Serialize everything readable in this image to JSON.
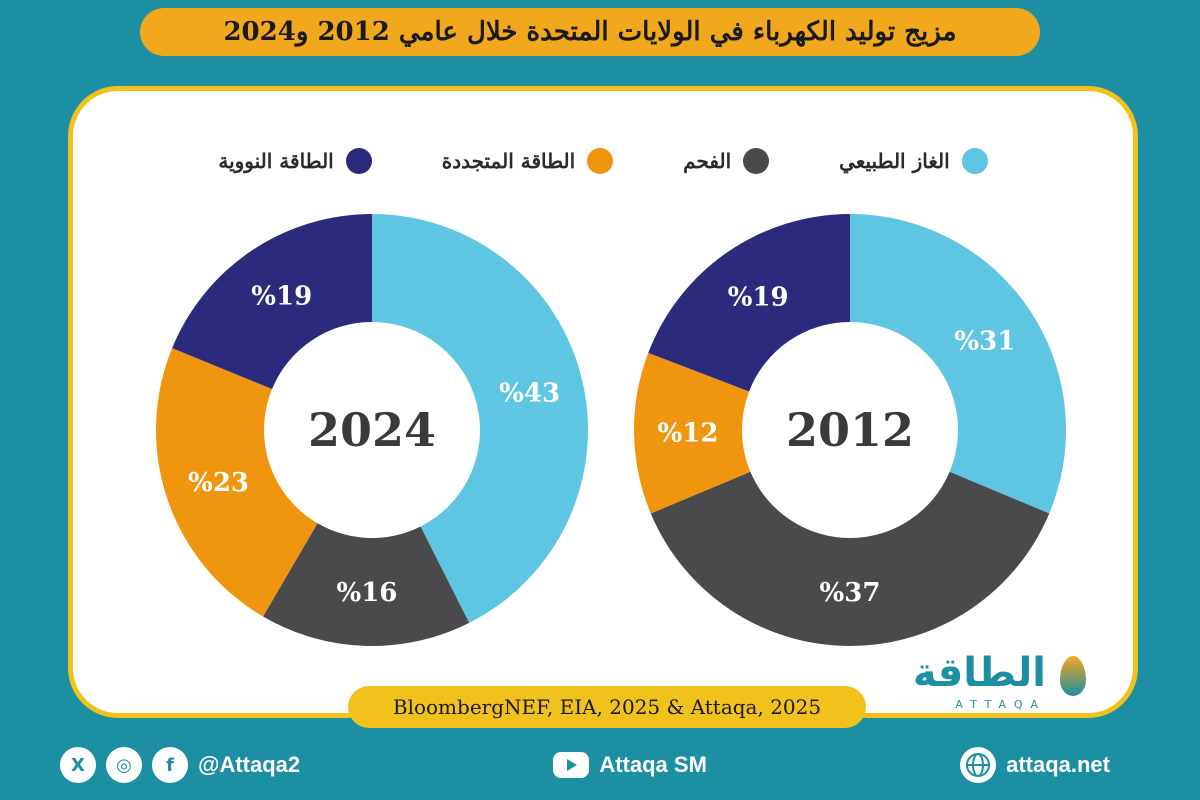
{
  "title": "مزيج توليد الكهرباء في الولايات المتحدة خلال عامي 2012 و2024",
  "source": "BloombergNEF, EIA, 2025 & Attaqa, 2025",
  "logo": {
    "main": "الطاقة",
    "sub": "ATTAQA"
  },
  "footer": {
    "website": "attaqa.net",
    "youtube": "Attaqa SM",
    "handle": "@Attaqa2",
    "social_icons": [
      "x-icon",
      "instagram-icon",
      "facebook-icon"
    ]
  },
  "colors": {
    "background": "#1d8fa3",
    "title_bar": "#f2a81c",
    "card_border": "#f2c21c"
  },
  "legend": [
    {
      "label": "الغاز الطبيعي",
      "color": "#5ec5e2"
    },
    {
      "label": "الفحم",
      "color": "#4a4a4c"
    },
    {
      "label": "الطاقة المتجددة",
      "color": "#f0960e"
    },
    {
      "label": "الطاقة النووية",
      "color": "#2b2a7c"
    }
  ],
  "chart_data": [
    {
      "type": "pie",
      "center_label": "2012",
      "categories": [
        "الغاز الطبيعي",
        "الفحم",
        "الطاقة المتجددة",
        "الطاقة النووية"
      ],
      "values": [
        31,
        37,
        12,
        19
      ],
      "labels": [
        "%31",
        "%37",
        "%12",
        "%19"
      ],
      "colors": [
        "#5ec5e2",
        "#4a4a4c",
        "#f0960e",
        "#2b2a7c"
      ]
    },
    {
      "type": "pie",
      "center_label": "2024",
      "categories": [
        "الغاز الطبيعي",
        "الفحم",
        "الطاقة المتجددة",
        "الطاقة النووية"
      ],
      "values": [
        43,
        16,
        23,
        19
      ],
      "labels": [
        "%43",
        "%16",
        "%23",
        "%19"
      ],
      "colors": [
        "#5ec5e2",
        "#4a4a4c",
        "#f0960e",
        "#2b2a7c"
      ]
    }
  ]
}
